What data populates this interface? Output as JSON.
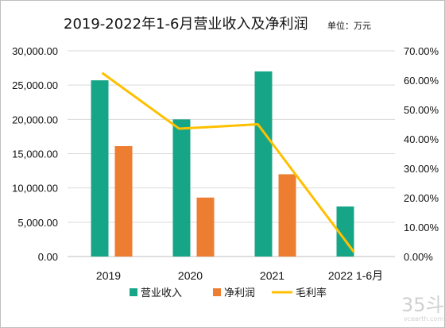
{
  "chart_data": {
    "type": "bar",
    "title": "2019-2022年1-6月营业收入及净利润",
    "unit_label": "单位：万元",
    "categories": [
      "2019",
      "2020",
      "2021",
      "2022 1-6月"
    ],
    "series": [
      {
        "name": "营业收入",
        "type": "bar",
        "axis": "left",
        "color": "#17a587",
        "values": [
          25700,
          20000,
          27000,
          7300
        ]
      },
      {
        "name": "净利润",
        "type": "bar",
        "axis": "left",
        "color": "#ed7d31",
        "values": [
          16100,
          8600,
          12000,
          null
        ]
      },
      {
        "name": "毛利率",
        "type": "line",
        "axis": "right",
        "color": "#ffc000",
        "values": [
          62.5,
          43.5,
          45.0,
          1.5
        ]
      }
    ],
    "ylim_left": [
      0,
      30000
    ],
    "ylim_right": [
      0,
      70
    ],
    "y_ticks_left": [
      "0.00",
      "5,000.00",
      "10,000.00",
      "15,000.00",
      "20,000.00",
      "25,000.00",
      "30,000.00"
    ],
    "y_ticks_right": [
      "0.00%",
      "10.00%",
      "20.00%",
      "30.00%",
      "40.00%",
      "50.00%",
      "60.00%",
      "70.00%"
    ],
    "grid": true,
    "legend_position": "bottom"
  },
  "watermark": {
    "big": "35斗",
    "small": "vcearth.com"
  }
}
